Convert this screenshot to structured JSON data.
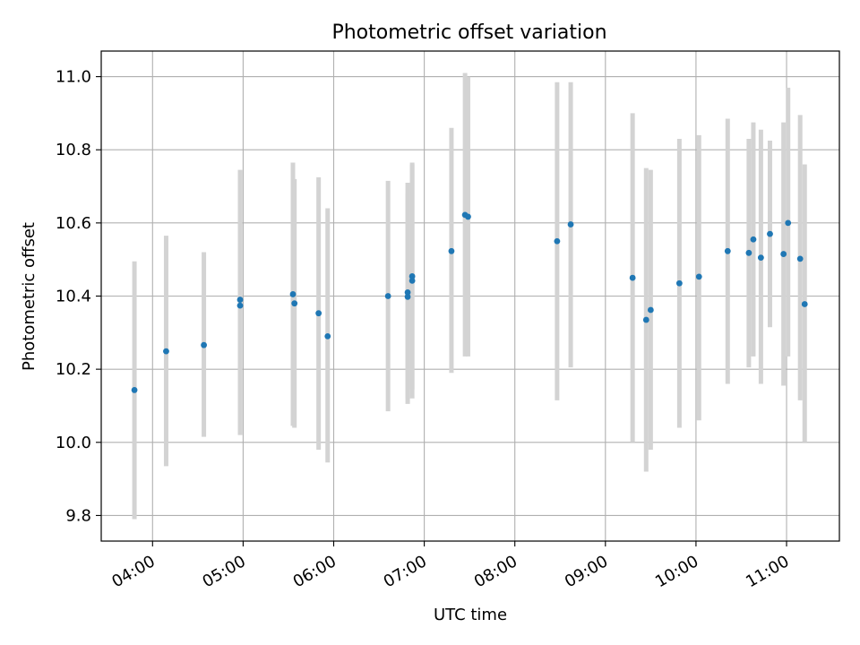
{
  "chart_data": {
    "type": "scatter",
    "title": "Photometric offset variation",
    "xlabel": "UTC time",
    "ylabel": "Photometric offset",
    "xlim": [
      "03:26",
      "11:35"
    ],
    "ylim": [
      9.73,
      11.07
    ],
    "xticks": [
      "04:00",
      "05:00",
      "06:00",
      "07:00",
      "08:00",
      "09:00",
      "10:00",
      "11:00"
    ],
    "yticks": [
      9.8,
      10.0,
      10.2,
      10.4,
      10.6,
      10.8,
      11.0
    ],
    "grid": true,
    "colors": {
      "point": "#1f77b4",
      "errorbar": "#d3d3d3",
      "grid": "#b0b0b0"
    },
    "points": [
      {
        "x": "03:48",
        "y": 10.143,
        "lo": 9.79,
        "hi": 10.495
      },
      {
        "x": "04:09",
        "y": 10.249,
        "lo": 9.935,
        "hi": 10.565
      },
      {
        "x": "04:34",
        "y": 10.266,
        "lo": 10.015,
        "hi": 10.52
      },
      {
        "x": "04:58",
        "y": 10.39,
        "lo": 10.02,
        "hi": 10.745
      },
      {
        "x": "04:58",
        "y": 10.374,
        "lo": 10.03,
        "hi": 10.72
      },
      {
        "x": "05:33",
        "y": 10.405,
        "lo": 10.045,
        "hi": 10.765
      },
      {
        "x": "05:34",
        "y": 10.38,
        "lo": 10.04,
        "hi": 10.72
      },
      {
        "x": "05:50",
        "y": 10.353,
        "lo": 9.98,
        "hi": 10.725
      },
      {
        "x": "05:56",
        "y": 10.29,
        "lo": 9.945,
        "hi": 10.64
      },
      {
        "x": "06:36",
        "y": 10.4,
        "lo": 10.085,
        "hi": 10.715
      },
      {
        "x": "06:49",
        "y": 10.41,
        "lo": 10.105,
        "hi": 10.71
      },
      {
        "x": "06:49",
        "y": 10.398,
        "lo": 10.12,
        "hi": 10.68
      },
      {
        "x": "06:52",
        "y": 10.454,
        "lo": 10.145,
        "hi": 10.765
      },
      {
        "x": "06:52",
        "y": 10.442,
        "lo": 10.12,
        "hi": 10.76
      },
      {
        "x": "07:18",
        "y": 10.523,
        "lo": 10.19,
        "hi": 10.86
      },
      {
        "x": "07:27",
        "y": 10.622,
        "lo": 10.235,
        "hi": 11.01
      },
      {
        "x": "07:29",
        "y": 10.617,
        "lo": 10.235,
        "hi": 11.0
      },
      {
        "x": "08:28",
        "y": 10.55,
        "lo": 10.115,
        "hi": 10.985
      },
      {
        "x": "08:37",
        "y": 10.596,
        "lo": 10.205,
        "hi": 10.985
      },
      {
        "x": "09:18",
        "y": 10.45,
        "lo": 10.0,
        "hi": 10.9
      },
      {
        "x": "09:27",
        "y": 10.335,
        "lo": 9.92,
        "hi": 10.75
      },
      {
        "x": "09:30",
        "y": 10.362,
        "lo": 9.98,
        "hi": 10.745
      },
      {
        "x": "09:49",
        "y": 10.435,
        "lo": 10.04,
        "hi": 10.83
      },
      {
        "x": "10:02",
        "y": 10.453,
        "lo": 10.06,
        "hi": 10.84
      },
      {
        "x": "10:21",
        "y": 10.523,
        "lo": 10.16,
        "hi": 10.885
      },
      {
        "x": "10:35",
        "y": 10.518,
        "lo": 10.205,
        "hi": 10.83
      },
      {
        "x": "10:38",
        "y": 10.555,
        "lo": 10.235,
        "hi": 10.875
      },
      {
        "x": "10:43",
        "y": 10.505,
        "lo": 10.16,
        "hi": 10.855
      },
      {
        "x": "10:49",
        "y": 10.57,
        "lo": 10.315,
        "hi": 10.825
      },
      {
        "x": "10:58",
        "y": 10.515,
        "lo": 10.155,
        "hi": 10.875
      },
      {
        "x": "11:01",
        "y": 10.6,
        "lo": 10.235,
        "hi": 10.97
      },
      {
        "x": "11:09",
        "y": 10.502,
        "lo": 10.115,
        "hi": 10.895
      },
      {
        "x": "11:12",
        "y": 10.378,
        "lo": 10.0,
        "hi": 10.76
      }
    ]
  }
}
